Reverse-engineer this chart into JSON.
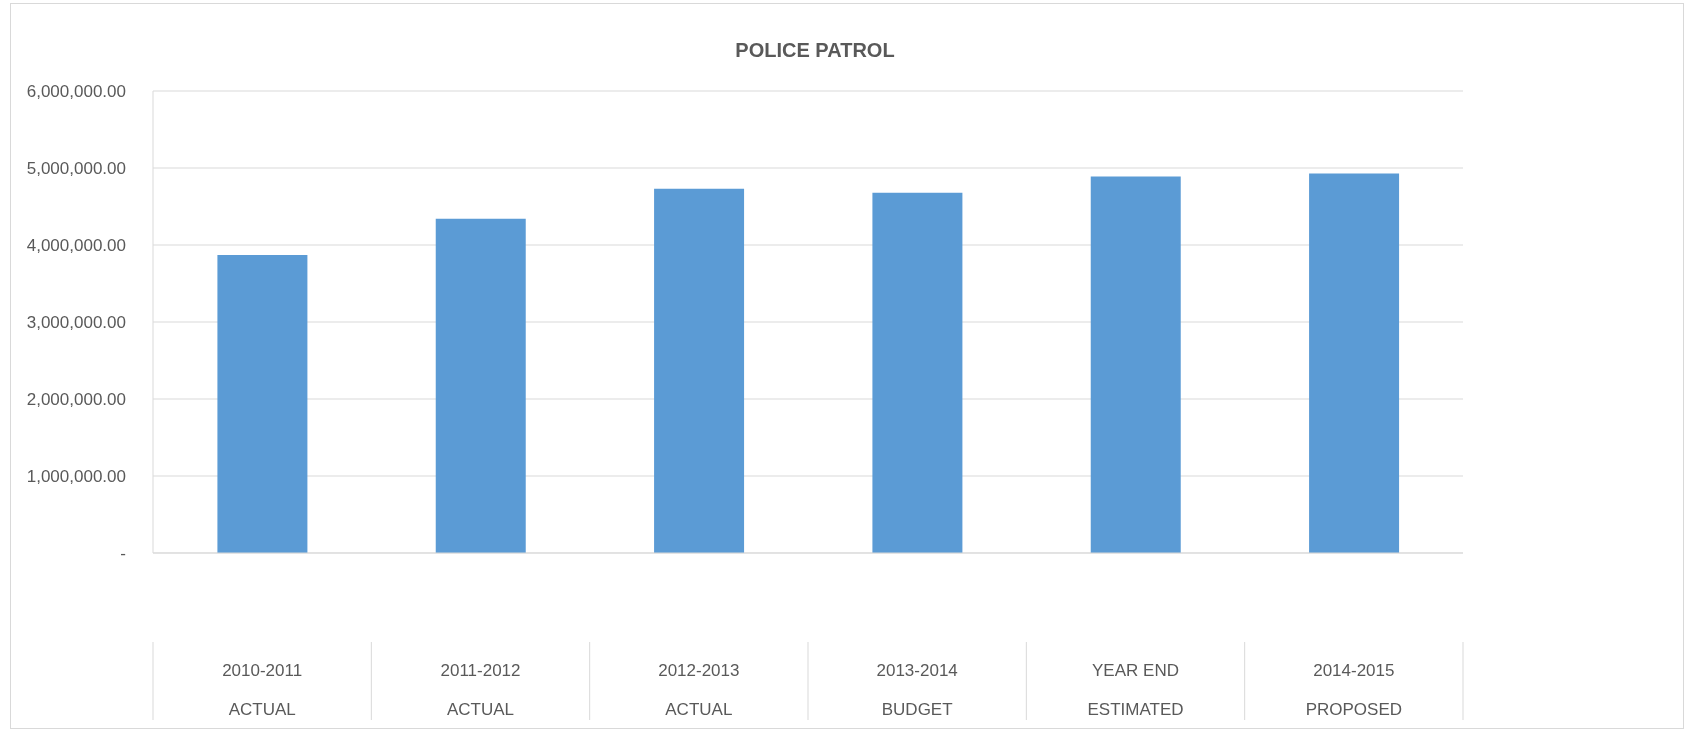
{
  "chart_data": {
    "type": "bar",
    "title": "POLICE PATROL",
    "categories": [
      "2010-2011\nACTUAL",
      "2011-2012\nACTUAL",
      "2012-2013\nACTUAL",
      "2013-2014\nBUDGET",
      "YEAR END\nESTIMATED",
      "2014-2015\nPROPOSED"
    ],
    "values": [
      3870000,
      4340000,
      4730000,
      4680000,
      4890000,
      4930000
    ],
    "color": "#5b9bd5",
    "ylim": [
      0,
      6000000
    ],
    "yticks": [
      {
        "value": 0,
        "label": "-"
      },
      {
        "value": 1000000,
        "label": "1,000,000.00"
      },
      {
        "value": 2000000,
        "label": "2,000,000.00"
      },
      {
        "value": 3000000,
        "label": "3,000,000.00"
      },
      {
        "value": 4000000,
        "label": "4,000,000.00"
      },
      {
        "value": 5000000,
        "label": "5,000,000.00"
      },
      {
        "value": 6000000,
        "label": "6,000,000.00"
      }
    ],
    "grid": "y"
  }
}
